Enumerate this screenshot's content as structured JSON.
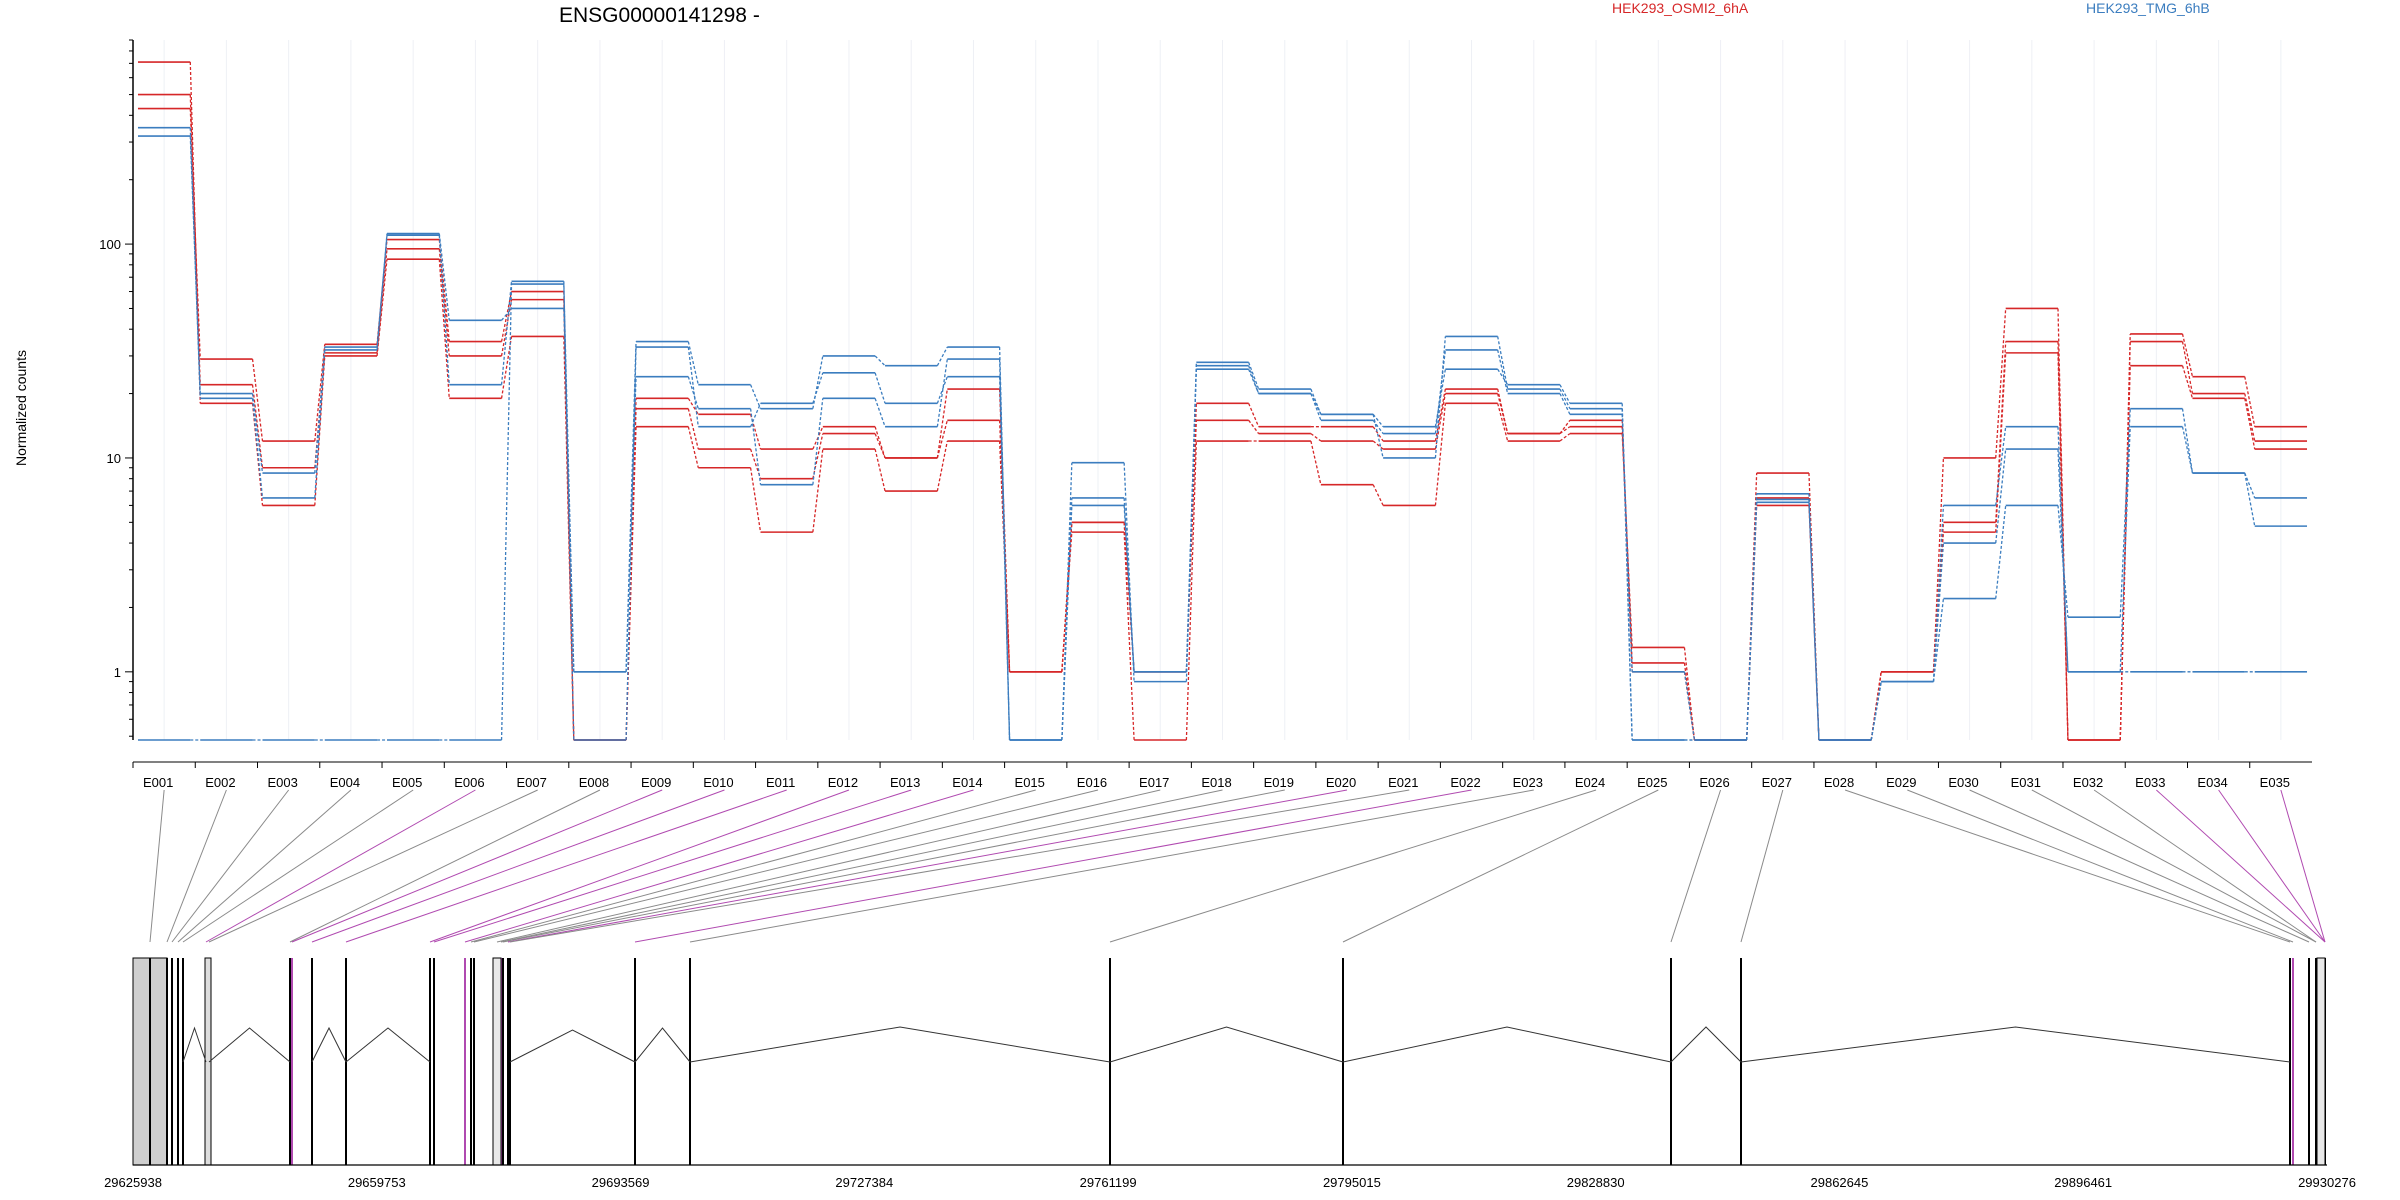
{
  "chart_data": {
    "type": "line",
    "title": "ENSG00000141298 -",
    "ylabel": "Normalized counts",
    "yscale": "log",
    "ylim": [
      0.48,
      900
    ],
    "yticks": [
      1,
      10,
      100
    ],
    "ytick_labels": [
      "1",
      "10",
      "100"
    ],
    "legend": [
      "HEK293_OSMI2_6hA",
      "HEK293_TMG_6hB"
    ],
    "legend_placement": "top",
    "colors": {
      "HEK293_OSMI2_6hA": "#d62728",
      "HEK293_TMG_6hB": "#3b7dbf",
      "highlight": "#b04ab0",
      "gene_box": "#cfcfcf"
    },
    "categories": [
      "E001",
      "E002",
      "E003",
      "E004",
      "E005",
      "E006",
      "E007",
      "E008",
      "E009",
      "E010",
      "E011",
      "E012",
      "E013",
      "E014",
      "E015",
      "E016",
      "E017",
      "E018",
      "E019",
      "E020",
      "E021",
      "E022",
      "E023",
      "E024",
      "E025",
      "E026",
      "E027",
      "E028",
      "E029",
      "E030",
      "E031",
      "E032",
      "E033",
      "E034",
      "E035"
    ],
    "series": [
      {
        "name": "HEK293_OSMI2_6hA",
        "values": [
          710,
          18,
          6,
          30,
          85,
          19,
          37,
          0.48,
          14,
          9,
          4.5,
          11,
          7,
          12,
          1,
          4.5,
          0.48,
          12,
          12,
          7.5,
          6,
          18,
          12,
          13,
          1.3,
          0.48,
          6,
          0.48,
          1,
          4.5,
          31,
          0.48,
          27,
          19,
          11
        ]
      },
      {
        "name": "HEK293_OSMI2_6hA",
        "values": [
          500,
          22,
          9,
          31,
          95,
          30,
          55,
          0.48,
          17,
          11,
          8,
          13,
          10,
          15,
          1,
          5,
          1,
          15,
          13,
          12,
          11,
          20,
          13,
          14,
          1.1,
          0.48,
          6.5,
          0.48,
          1,
          5,
          35,
          0.48,
          35,
          20,
          12
        ]
      },
      {
        "name": "HEK293_OSMI2_6hA",
        "values": [
          430,
          29,
          12,
          34,
          105,
          35,
          60,
          0.48,
          19,
          16,
          11,
          14,
          10,
          21,
          1,
          5,
          1,
          18,
          14,
          14,
          12,
          21,
          13,
          15,
          1.0,
          0.48,
          8.5,
          0.48,
          1,
          10,
          50,
          0.48,
          38,
          24,
          14
        ]
      },
      {
        "name": "HEK293_TMG_6hB",
        "values": [
          350,
          19,
          6.5,
          32,
          112,
          44,
          50,
          1,
          24,
          17,
          7.5,
          19,
          14,
          29,
          0.48,
          6,
          1,
          26,
          20,
          15,
          13,
          32,
          20,
          16,
          1.0,
          0.48,
          6.8,
          0.48,
          0.9,
          4,
          11,
          1.0,
          14,
          8.5,
          6.5
        ]
      },
      {
        "name": "HEK293_TMG_6hB",
        "values": [
          320,
          20,
          8.5,
          33,
          110,
          22,
          67,
          0.48,
          33,
          14,
          18,
          25,
          18,
          24,
          0.48,
          9.5,
          0.9,
          28,
          21,
          16,
          10,
          37,
          21,
          17,
          0.48,
          0.48,
          6.2,
          0.48,
          0.9,
          2.2,
          6,
          1.8,
          17,
          8.5,
          4.8
        ]
      },
      {
        "name": "HEK293_TMG_6hB",
        "values": [
          0.48,
          0.48,
          0.48,
          0.48,
          0.48,
          0.48,
          65,
          1,
          35,
          22,
          17,
          30,
          27,
          33,
          0.48,
          6.5,
          1,
          27,
          20,
          16,
          14,
          26,
          22,
          18,
          0.48,
          0.48,
          6.4,
          0.48,
          0.9,
          6,
          14,
          1.0,
          1.0,
          1.0,
          1.0
        ]
      }
    ],
    "genomic_coords": [
      "29625938",
      "29659753",
      "29693569",
      "29727384",
      "29761199",
      "29795015",
      "29828830",
      "29862645",
      "29896461",
      "29930276"
    ],
    "highlighted_exons": [
      "E006",
      "E009",
      "E010",
      "E011",
      "E012",
      "E013",
      "E014",
      "E020",
      "E022",
      "E033",
      "E034",
      "E035"
    ]
  }
}
